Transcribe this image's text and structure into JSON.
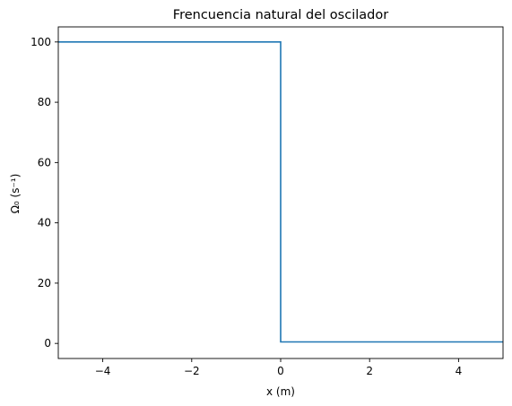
{
  "chart_data": {
    "type": "line",
    "title": "Frencuencia natural del oscilador",
    "xlabel": "x (m)",
    "ylabel": "Ω₀ (s⁻¹)",
    "xlim": [
      -5,
      5
    ],
    "ylim": [
      -5,
      105
    ],
    "xticks": [
      -4,
      -2,
      0,
      2,
      4
    ],
    "xtick_labels": [
      "−4",
      "−2",
      "0",
      "2",
      "4"
    ],
    "yticks": [
      0,
      20,
      40,
      60,
      80,
      100
    ],
    "ytick_labels": [
      "0",
      "20",
      "40",
      "60",
      "80",
      "100"
    ],
    "grid": false,
    "series": [
      {
        "color": "#1f77b4",
        "x": [
          -5,
          0,
          0,
          5
        ],
        "y": [
          100,
          100,
          0.5,
          0.5
        ]
      }
    ]
  }
}
